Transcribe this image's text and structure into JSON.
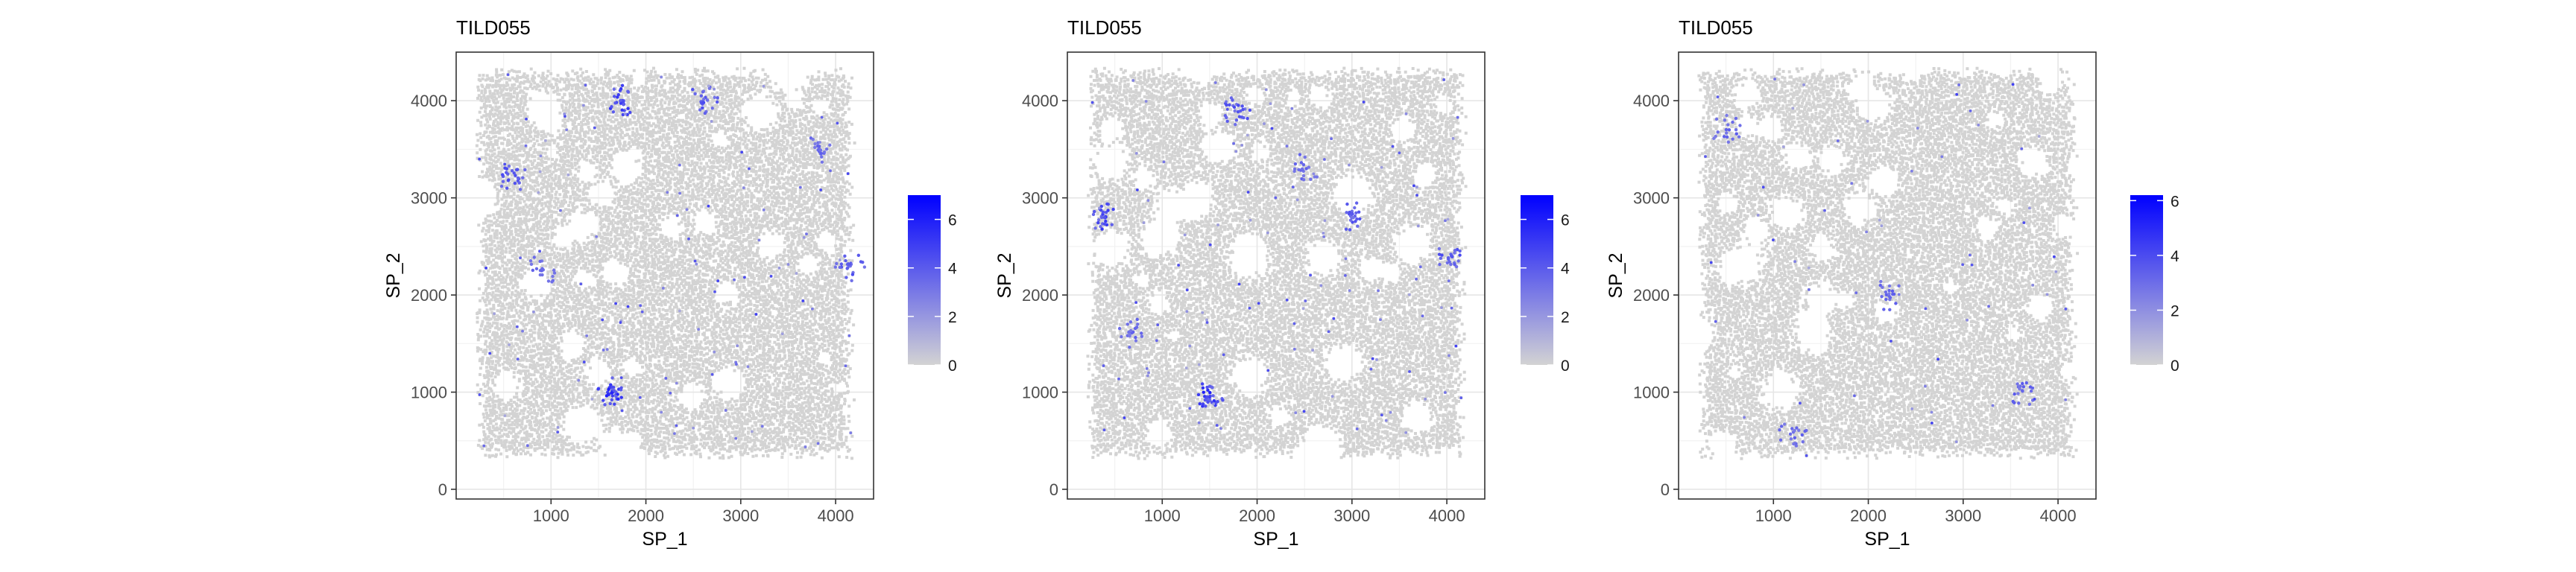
{
  "chart_data": [
    {
      "type": "scatter",
      "title": "TILD055",
      "xlabel": "SP_1",
      "ylabel": "SP_2",
      "x_ticks": [
        1000,
        2000,
        3000,
        4000
      ],
      "y_ticks": [
        0,
        1000,
        2000,
        3000,
        4000
      ],
      "xlim": [
        0,
        4400
      ],
      "ylim": [
        -100,
        4500
      ],
      "grid": true,
      "legend_position": "right",
      "colorbar": {
        "min": 0,
        "max": 7,
        "ticks": [
          0,
          2,
          4,
          6
        ],
        "low_color": "#d3d3d3",
        "high_color": "#0000ff"
      },
      "spots_extent": {
        "x": [
          200,
          4200
        ],
        "y": [
          300,
          4350
        ]
      },
      "hotspots": [
        {
          "x": 1650,
          "y": 1000,
          "level": 5
        },
        {
          "x": 1750,
          "y": 4000,
          "level": 4
        },
        {
          "x": 600,
          "y": 3200,
          "level": 3
        },
        {
          "x": 4150,
          "y": 2300,
          "level": 3
        },
        {
          "x": 2600,
          "y": 4000,
          "level": 3
        },
        {
          "x": 900,
          "y": 2250,
          "level": 2
        },
        {
          "x": 3800,
          "y": 3500,
          "level": 2
        }
      ]
    },
    {
      "type": "scatter",
      "title": "TILD055",
      "xlabel": "SP_1",
      "ylabel": "SP_2",
      "x_ticks": [
        1000,
        2000,
        3000,
        4000
      ],
      "y_ticks": [
        0,
        1000,
        2000,
        3000,
        4000
      ],
      "xlim": [
        0,
        4400
      ],
      "ylim": [
        -100,
        4500
      ],
      "grid": true,
      "legend_position": "right",
      "colorbar": {
        "min": 0,
        "max": 7,
        "ticks": [
          0,
          2,
          4,
          6
        ],
        "low_color": "#d3d3d3",
        "high_color": "#0000ff"
      },
      "spots_extent": {
        "x": [
          200,
          4200
        ],
        "y": [
          300,
          4350
        ]
      },
      "hotspots": [
        {
          "x": 1500,
          "y": 950,
          "level": 5
        },
        {
          "x": 400,
          "y": 2800,
          "level": 4
        },
        {
          "x": 1800,
          "y": 3900,
          "level": 3
        },
        {
          "x": 3000,
          "y": 2800,
          "level": 3
        },
        {
          "x": 4050,
          "y": 2400,
          "level": 3
        },
        {
          "x": 2500,
          "y": 3300,
          "level": 2
        },
        {
          "x": 700,
          "y": 1600,
          "level": 2
        }
      ]
    },
    {
      "type": "scatter",
      "title": "TILD055",
      "xlabel": "SP_1",
      "ylabel": "SP_2",
      "x_ticks": [
        1000,
        2000,
        3000,
        4000
      ],
      "y_ticks": [
        0,
        1000,
        2000,
        3000,
        4000
      ],
      "xlim": [
        0,
        4400
      ],
      "ylim": [
        -100,
        4500
      ],
      "grid": true,
      "legend_position": "right",
      "colorbar": {
        "min": 0,
        "max": 6.2,
        "ticks": [
          0,
          2,
          4,
          6
        ],
        "low_color": "#d3d3d3",
        "high_color": "#0000ff"
      },
      "spots_extent": {
        "x": [
          200,
          4200
        ],
        "y": [
          300,
          4350
        ]
      },
      "hotspots": [
        {
          "x": 500,
          "y": 3700,
          "level": 2
        },
        {
          "x": 3600,
          "y": 1000,
          "level": 2
        },
        {
          "x": 2200,
          "y": 2000,
          "level": 2
        },
        {
          "x": 1200,
          "y": 600,
          "level": 2
        }
      ]
    }
  ]
}
